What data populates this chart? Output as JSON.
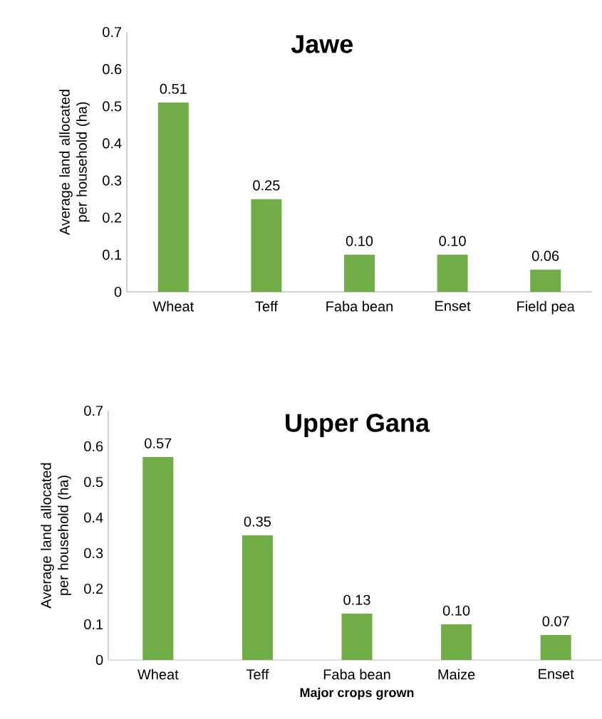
{
  "chart_data": [
    {
      "type": "bar",
      "title": "Jawe",
      "ylabel": "Average land allocated per household (ha)",
      "categories": [
        "Wheat",
        "Teff",
        "Faba bean",
        "Enset",
        "Field pea"
      ],
      "values": [
        0.51,
        0.25,
        0.1,
        0.1,
        0.06
      ],
      "value_labels": [
        "0.51",
        "0.25",
        "0.10",
        "0.10",
        "0.06"
      ],
      "color": "#70ad47",
      "ylim": [
        0,
        0.7
      ],
      "yticks": [
        0,
        0.1,
        0.2,
        0.3,
        0.4,
        0.5,
        0.6,
        0.7
      ]
    },
    {
      "type": "bar",
      "title": "Upper Gana",
      "ylabel": "Average land allocated per household (ha)",
      "xlabel": "Major crops grown",
      "categories": [
        "Wheat",
        "Teff",
        "Faba bean",
        "Maize",
        "Enset"
      ],
      "values": [
        0.57,
        0.35,
        0.13,
        0.1,
        0.07
      ],
      "value_labels": [
        "0.57",
        "0.35",
        "0.13",
        "0.10",
        "0.07"
      ],
      "color": "#70ad47",
      "ylim": [
        0,
        0.7
      ],
      "yticks": [
        0,
        0.1,
        0.2,
        0.3,
        0.4,
        0.5,
        0.6,
        0.7
      ]
    }
  ]
}
